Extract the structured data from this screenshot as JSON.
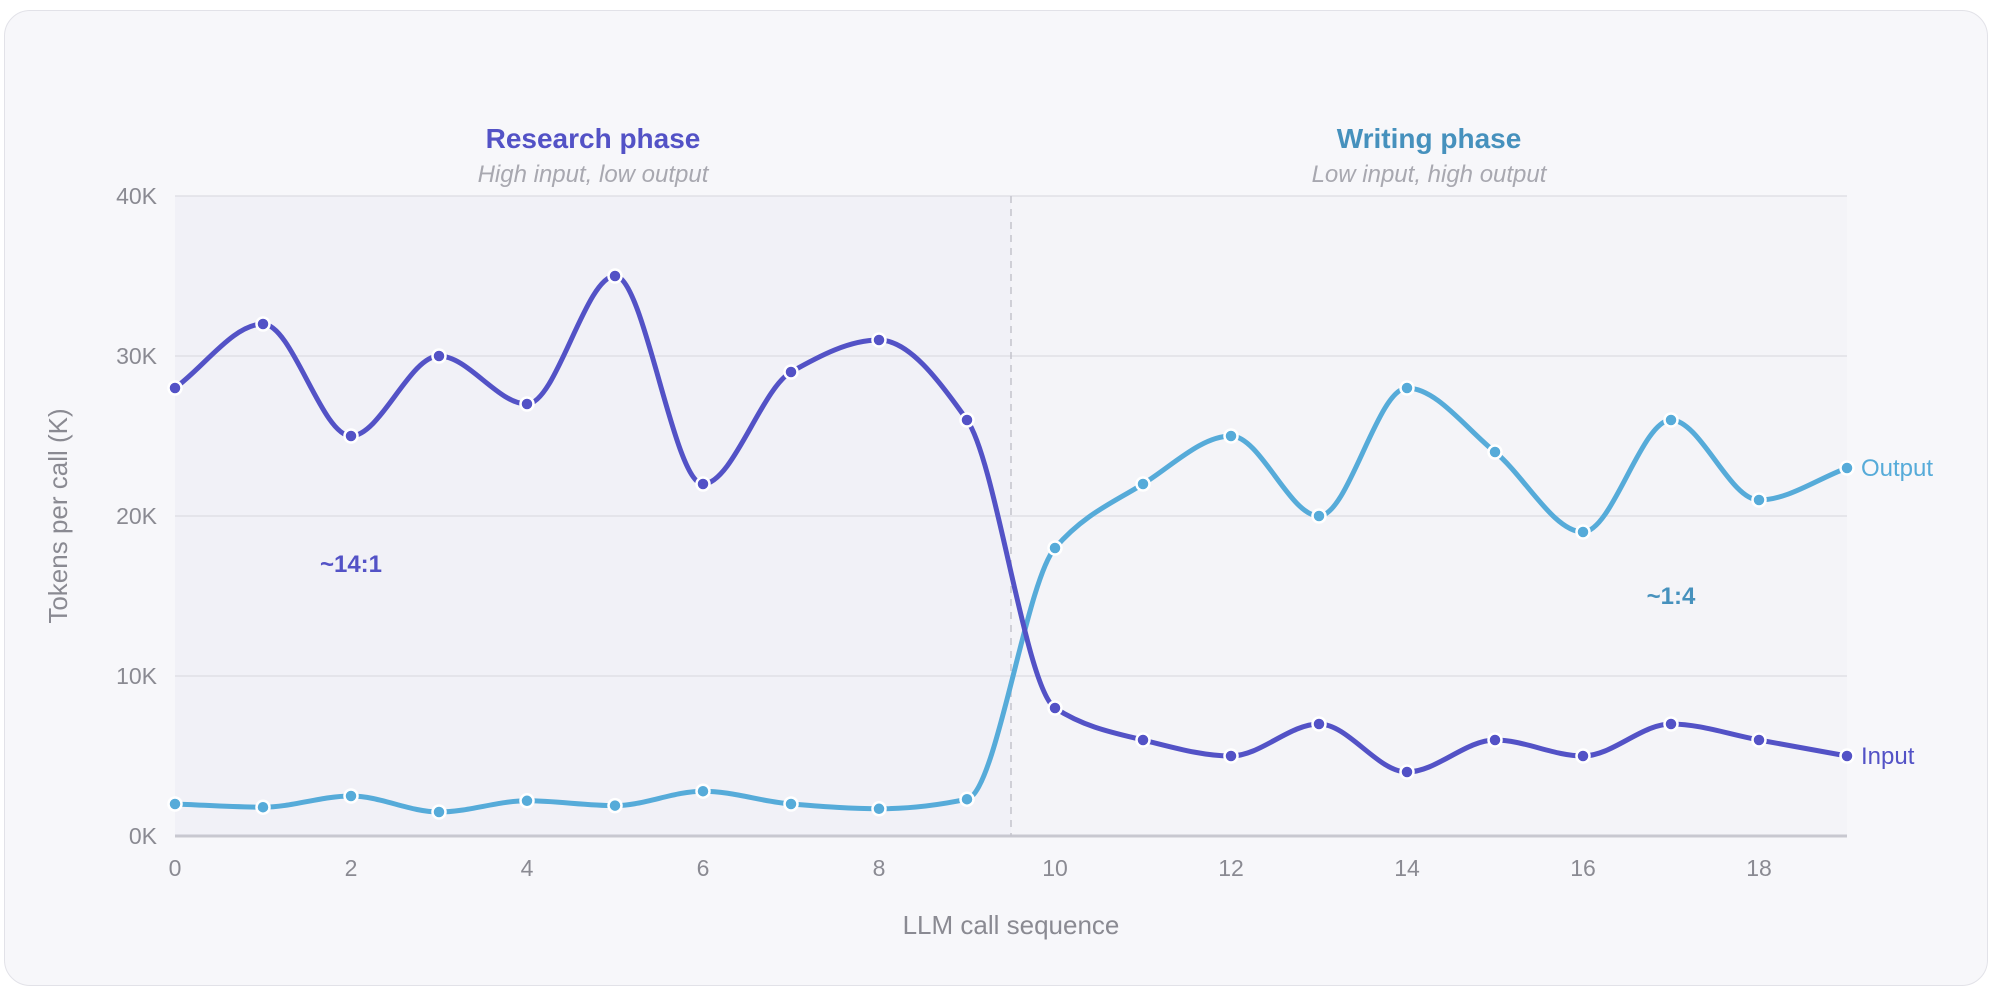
{
  "chart_data": {
    "type": "line",
    "xlabel": "LLM call sequence",
    "ylabel": "Tokens per call (K)",
    "xlim": [
      0,
      19
    ],
    "ylim": [
      0,
      40
    ],
    "x_ticks": [
      0,
      2,
      4,
      6,
      8,
      10,
      12,
      14,
      16,
      18
    ],
    "y_ticks": [
      0,
      10,
      20,
      30,
      40
    ],
    "y_tick_labels": [
      "0K",
      "10K",
      "20K",
      "30K",
      "40K"
    ],
    "grid": true,
    "x": [
      0,
      1,
      2,
      3,
      4,
      5,
      6,
      7,
      8,
      9,
      10,
      11,
      12,
      13,
      14,
      15,
      16,
      17,
      18,
      19
    ],
    "series": [
      {
        "name": "Input",
        "color": "#5352c6",
        "values": [
          28,
          32,
          25,
          30,
          27,
          35,
          22,
          29,
          31,
          26,
          8,
          6,
          5,
          7,
          4,
          6,
          5,
          7,
          6,
          5
        ]
      },
      {
        "name": "Output",
        "color": "#56abd9",
        "values": [
          2,
          1.8,
          2.5,
          1.5,
          2.2,
          1.9,
          2.8,
          2,
          1.7,
          2.3,
          18,
          22,
          25,
          20,
          28,
          24,
          19,
          26,
          21,
          23
        ]
      }
    ],
    "phase_boundary_x": 9.5,
    "phases": [
      {
        "title": "Research phase",
        "subtitle": "High input, low output",
        "color": "#5352c6",
        "x_range": [
          0,
          9.5
        ],
        "ratio": "~14:1",
        "ratio_at": [
          2,
          17
        ]
      },
      {
        "title": "Writing phase",
        "subtitle": "Low input, high output",
        "color": "#4691bd",
        "x_range": [
          9.5,
          19
        ],
        "ratio": "~1:4",
        "ratio_at": [
          17,
          15
        ]
      }
    ]
  }
}
